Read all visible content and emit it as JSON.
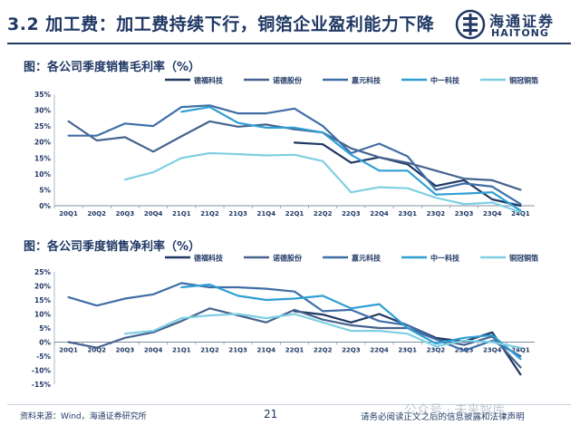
{
  "header": {
    "title": "3.2 加工费：加工费持续下行，铜箔企业盈利能力下降",
    "logo_cn": "海通证券",
    "logo_en": "HAITONG"
  },
  "footer": {
    "source": "资料来源：Wind，海通证券研究所",
    "page": "21",
    "disclaimer": "请务必阅读正文之后的信息披露和法律声明",
    "watermark": "公众号 · 未来智库"
  },
  "colors": {
    "navy": "#1f3864",
    "dark_blue": "#2c4a7c",
    "slate": "#45638e",
    "steel": "#3f6ea7",
    "teal": "#2e9fd4",
    "aqua": "#7fcfe3"
  },
  "chart_data": [
    {
      "type": "line",
      "title": "图：各公司季度销售毛利率（%）",
      "categories": [
        "20Q1",
        "20Q2",
        "20Q3",
        "20Q4",
        "21Q1",
        "21Q2",
        "21Q3",
        "21Q4",
        "22Q1",
        "22Q2",
        "22Q3",
        "22Q4",
        "23Q1",
        "23Q2",
        "23Q3",
        "23Q4",
        "24Q1"
      ],
      "ylim": [
        0,
        35
      ],
      "yticks": [
        0,
        5,
        10,
        15,
        20,
        25,
        30,
        35
      ],
      "ytick_labels": [
        "0%",
        "5%",
        "10%",
        "15%",
        "20%",
        "25%",
        "30%",
        "35%"
      ],
      "legend_position": "top",
      "series": [
        {
          "name": "德福科技",
          "color": "#1f3864",
          "values": [
            null,
            null,
            null,
            null,
            null,
            null,
            null,
            null,
            19.8,
            19.3,
            13.5,
            15.2,
            13.0,
            6.2,
            8.0,
            2.0,
            0.0
          ]
        },
        {
          "name": "诺德股份",
          "color": "#45638e",
          "values": [
            26.5,
            20.5,
            21.5,
            17.0,
            21.8,
            26.5,
            24.8,
            25.5,
            24.0,
            23.0,
            18.0,
            15.2,
            13.5,
            11.0,
            8.5,
            8.0,
            5.0
          ]
        },
        {
          "name": "嘉元科技",
          "color": "#3f6ea7",
          "values": [
            22.0,
            22.0,
            25.8,
            25.0,
            31.0,
            31.5,
            29.0,
            29.0,
            30.5,
            25.0,
            16.5,
            19.5,
            15.5,
            5.0,
            7.0,
            6.0,
            0.5
          ]
        },
        {
          "name": "中一科技",
          "color": "#2e9fd4",
          "values": [
            null,
            null,
            null,
            null,
            29.5,
            31.0,
            26.0,
            24.5,
            24.5,
            23.0,
            16.0,
            11.0,
            11.0,
            3.5,
            3.8,
            4.2,
            -1.5
          ]
        },
        {
          "name": "铜冠铜箔",
          "color": "#7fcfe3",
          "values": [
            null,
            null,
            8.2,
            10.5,
            15.0,
            16.5,
            16.2,
            15.8,
            16.0,
            14.0,
            4.2,
            5.8,
            5.5,
            2.5,
            0.5,
            1.0,
            -2.0
          ]
        }
      ]
    },
    {
      "type": "line",
      "title": "图：各公司季度销售净利率（%）",
      "categories": [
        "20Q1",
        "20Q2",
        "20Q3",
        "20Q4",
        "21Q1",
        "21Q2",
        "21Q3",
        "21Q4",
        "22Q1",
        "22Q2",
        "22Q3",
        "22Q4",
        "23Q1",
        "23Q2",
        "23Q3",
        "23Q4",
        "24Q1"
      ],
      "ylim": [
        -15,
        25
      ],
      "yticks": [
        -15,
        -10,
        -5,
        0,
        5,
        10,
        15,
        20,
        25
      ],
      "ytick_labels": [
        "-15%",
        "-10%",
        "-5%",
        "0%",
        "5%",
        "10%",
        "15%",
        "20%",
        "25%"
      ],
      "legend_position": "top",
      "series": [
        {
          "name": "德福科技",
          "color": "#1f3864",
          "values": [
            null,
            null,
            null,
            null,
            null,
            null,
            null,
            null,
            11.0,
            9.8,
            7.0,
            10.0,
            6.0,
            1.5,
            0.2,
            3.5,
            -11.5
          ]
        },
        {
          "name": "诺德股份",
          "color": "#45638e",
          "values": [
            0.0,
            -2.0,
            1.5,
            3.5,
            7.5,
            12.0,
            9.5,
            7.0,
            11.5,
            8.0,
            6.0,
            5.0,
            5.0,
            1.0,
            -1.0,
            2.0,
            -9.0
          ]
        },
        {
          "name": "嘉元科技",
          "color": "#3f6ea7",
          "values": [
            16.0,
            13.0,
            15.5,
            17.0,
            21.0,
            19.5,
            19.5,
            19.0,
            18.0,
            11.0,
            11.5,
            7.5,
            6.0,
            1.0,
            -3.0,
            0.5,
            -5.0
          ]
        },
        {
          "name": "中一科技",
          "color": "#2e9fd4",
          "values": [
            null,
            null,
            null,
            null,
            19.5,
            20.5,
            16.5,
            15.0,
            15.5,
            16.5,
            12.0,
            13.5,
            5.0,
            -0.5,
            1.5,
            2.5,
            -6.0
          ]
        },
        {
          "name": "铜冠铜箔",
          "color": "#7fcfe3",
          "values": [
            null,
            null,
            3.0,
            4.0,
            8.5,
            9.5,
            10.0,
            8.5,
            10.0,
            7.0,
            4.0,
            4.0,
            3.0,
            -1.5,
            0.5,
            0.0,
            -2.0
          ]
        }
      ]
    }
  ]
}
